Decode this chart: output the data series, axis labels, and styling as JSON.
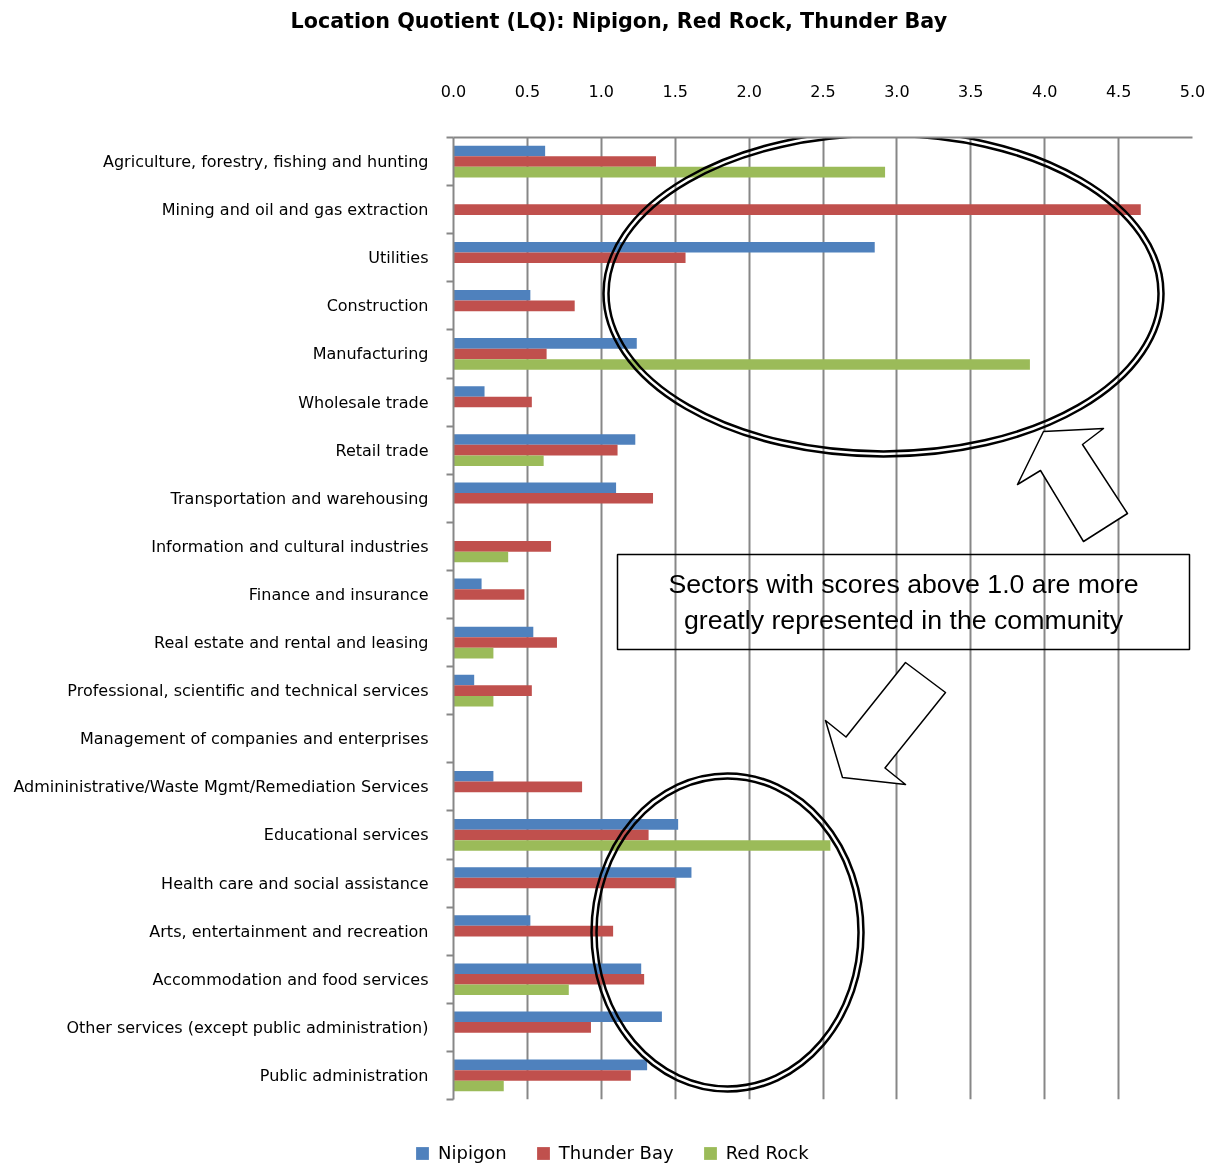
{
  "chart_data": {
    "type": "bar",
    "orientation": "horizontal",
    "title": "Location Quotient (LQ): Nipigon, Red Rock, Thunder Bay",
    "categories": [
      "Agriculture, forestry, fishing and hunting",
      "Mining and oil and gas extraction",
      "Utilities",
      "Construction",
      "Manufacturing",
      "Wholesale trade",
      "Retail trade",
      "Transportation and warehousing",
      "Information and cultural industries",
      "Finance and insurance",
      "Real estate and rental and leasing",
      "Professional, scientific and technical services",
      "Management of companies and enterprises",
      "Admininistrative/Waste Mgmt/Remediation Services",
      "Educational services",
      "Health care and social assistance",
      "Arts, entertainment and recreation",
      "Accommodation and food services",
      "Other services (except public administration)",
      "Public administration"
    ],
    "series": [
      {
        "name": "Nipigon",
        "color": "#4f81bd",
        "values": [
          0.62,
          null,
          2.85,
          0.52,
          1.24,
          0.21,
          1.23,
          1.1,
          null,
          0.19,
          0.54,
          0.14,
          null,
          0.27,
          1.52,
          1.61,
          0.52,
          1.27,
          1.41,
          1.31
        ]
      },
      {
        "name": "Thunder Bay",
        "color": "#c0504d",
        "values": [
          1.37,
          4.65,
          1.57,
          0.82,
          0.63,
          0.53,
          1.11,
          1.35,
          0.66,
          0.48,
          0.7,
          0.53,
          null,
          0.87,
          1.32,
          1.5,
          1.08,
          1.29,
          0.93,
          1.2
        ]
      },
      {
        "name": "Red Rock",
        "color": "#9bbb59",
        "values": [
          2.92,
          null,
          null,
          null,
          3.9,
          null,
          0.61,
          null,
          0.37,
          null,
          0.27,
          0.27,
          null,
          null,
          2.55,
          null,
          null,
          0.78,
          null,
          0.34
        ]
      }
    ],
    "xlim": [
      0,
      5
    ],
    "xticks": [
      {
        "value": 0,
        "label": "0.0"
      },
      0.5,
      {
        "value": 1,
        "label": "1.0"
      },
      1.5,
      {
        "value": 2,
        "label": "2.0"
      },
      2.5,
      {
        "value": 3,
        "label": "3.0"
      },
      3.5,
      {
        "value": 4,
        "label": "4.0"
      },
      4.5,
      {
        "value": 5,
        "label": "5.0"
      }
    ],
    "grid": "x",
    "legend": "bottom",
    "annotations": [
      "Sectors with scores above 1.0 are more greatly represented in the community"
    ]
  }
}
